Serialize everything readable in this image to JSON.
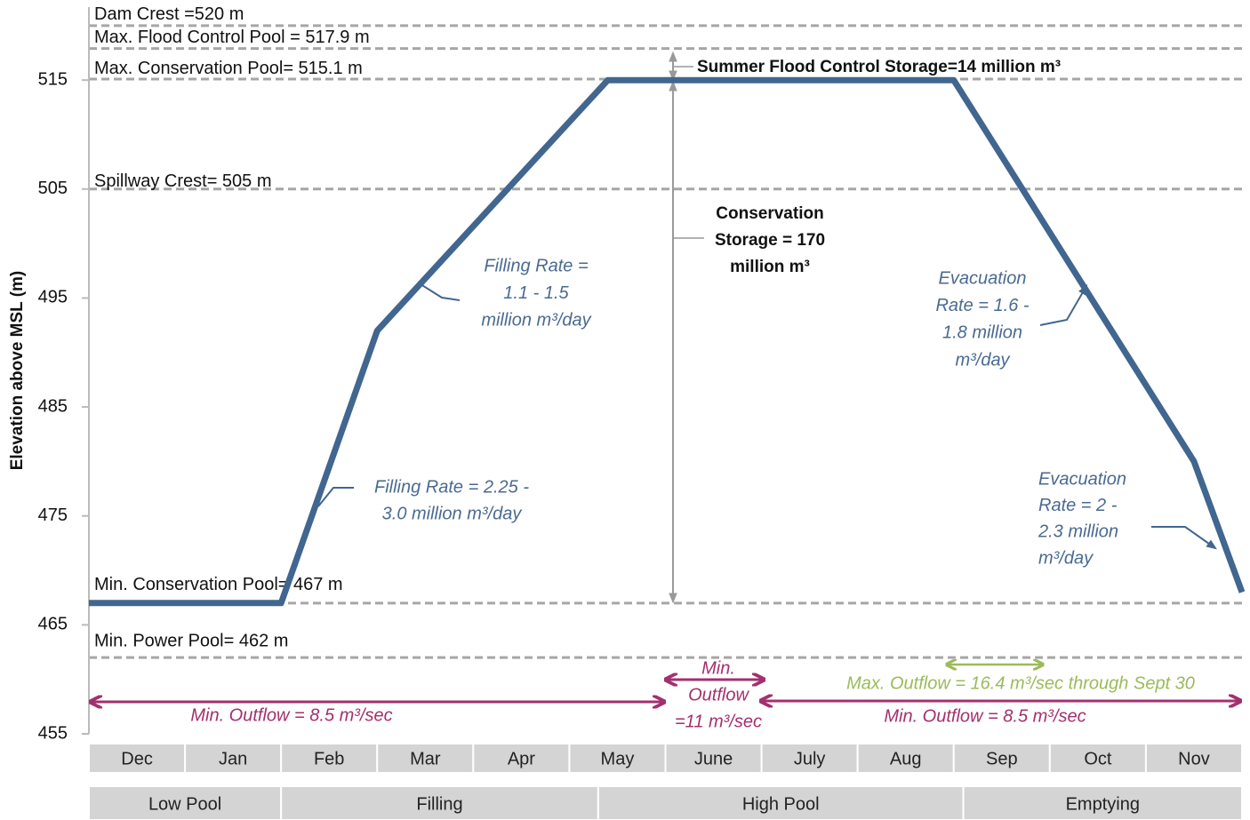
{
  "chart_data": {
    "type": "line",
    "y_label": "Elevation above MSL (m)",
    "categories": [
      "Dec",
      "Jan",
      "Feb",
      "Mar",
      "Apr",
      "May",
      "June",
      "July",
      "Aug",
      "Sep",
      "Oct",
      "Nov"
    ],
    "x": [
      0,
      2,
      3,
      5.4,
      9,
      11.5,
      12
    ],
    "values": [
      467,
      467,
      492,
      515,
      515,
      480,
      468
    ],
    "color": "#41668f",
    "xlim": [
      0,
      12
    ],
    "ylim": [
      455,
      521.7
    ],
    "yticks": [
      455,
      465,
      475,
      485,
      495,
      505,
      515
    ],
    "reference_lines": [
      {
        "value": 520,
        "label": "Dam Crest =520 m"
      },
      {
        "value": 517.9,
        "label": "Max. Flood Control Pool = 517.9 m"
      },
      {
        "value": 515.1,
        "label": "Max. Conservation Pool= 515.1 m"
      },
      {
        "value": 505,
        "label": "Spillway Crest= 505 m"
      },
      {
        "value": 467,
        "label": "Min. Conservation Pool= 467 m"
      },
      {
        "value": 462,
        "label": "Min. Power Pool= 462 m"
      }
    ],
    "annotations": [
      {
        "lines": [
          "Summer Flood Control Storage=14 million m³"
        ]
      },
      {
        "lines": [
          "Conservation",
          "Storage = 170",
          "million m³"
        ]
      },
      {
        "lines": [
          "Filling Rate =",
          "1.1 - 1.5",
          "million m³/day"
        ]
      },
      {
        "lines": [
          "Filling Rate = 2.25 -",
          "3.0 million m³/day"
        ]
      },
      {
        "lines": [
          "Evacuation",
          "Rate = 1.6 -",
          "1.8 million",
          "m³/day"
        ]
      },
      {
        "lines": [
          "Evacuation",
          "Rate = 2 -",
          "2.3 million",
          "m³/day"
        ]
      },
      {
        "lines": [
          "Min. Outflow = 8.5 m³/sec"
        ]
      },
      {
        "lines": [
          "Min.",
          "Outflow",
          "=11 m³/sec"
        ]
      },
      {
        "lines": [
          "Max. Outflow = 16.4 m³/sec through Sept 30"
        ]
      },
      {
        "lines": [
          "Min. Outflow = 8.5 m³/sec"
        ]
      }
    ],
    "phases": [
      {
        "label": "Low Pool",
        "start": 0,
        "end": 2
      },
      {
        "label": "Filling",
        "start": 2,
        "end": 5.3
      },
      {
        "label": "High Pool",
        "start": 5.3,
        "end": 9.1
      },
      {
        "label": "Emptying",
        "start": 9.1,
        "end": 12
      }
    ]
  }
}
